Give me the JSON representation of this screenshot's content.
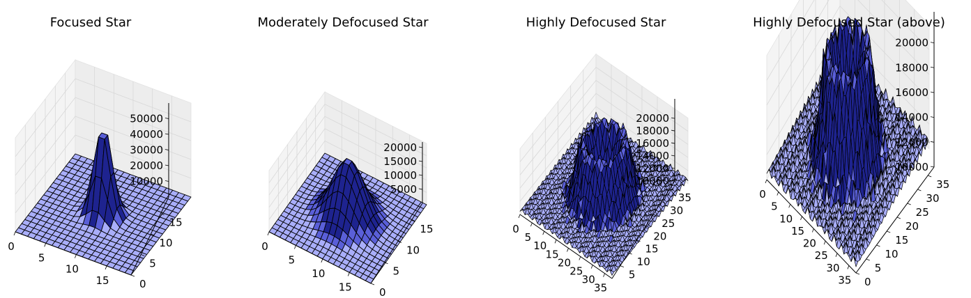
{
  "colors": {
    "surface": "#a9aefa",
    "surface_dark": "#5a5fd8",
    "surface_deep": "#1e238f",
    "edge": "#000000",
    "pane": "#ededed",
    "pane_side": "#f4f4f4",
    "grid": "#e2e2e2"
  },
  "chart_data": [
    {
      "type": "surface3d",
      "title": "Focused Star",
      "shape": "gaussian",
      "view": "side",
      "x_ticks": [
        "0",
        "5",
        "10",
        "15"
      ],
      "y_ticks": [
        "0",
        "5",
        "10",
        "15"
      ],
      "z_ticks": [
        "10000",
        "20000",
        "30000",
        "40000",
        "50000"
      ],
      "xlim": [
        0,
        19
      ],
      "ylim": [
        0,
        19
      ],
      "zlim": [
        0,
        60000
      ],
      "grid_n": 20,
      "peak": 58000,
      "base": 0,
      "sigma": 1.3
    },
    {
      "type": "surface3d",
      "title": "Moderately Defocused Star",
      "shape": "gaussian",
      "view": "side",
      "x_ticks": [
        "0",
        "5",
        "10",
        "15"
      ],
      "y_ticks": [
        "0",
        "5",
        "10",
        "15"
      ],
      "z_ticks": [
        "5000",
        "10000",
        "15000",
        "20000"
      ],
      "xlim": [
        0,
        19
      ],
      "ylim": [
        0,
        19
      ],
      "zlim": [
        0,
        22000
      ],
      "grid_n": 20,
      "peak": 21000,
      "base": 0,
      "sigma": 2.6
    },
    {
      "type": "surface3d",
      "title": "Highly Defocused Star",
      "shape": "donut",
      "view": "side",
      "x_ticks": [
        "0",
        "5",
        "10",
        "15",
        "20",
        "25",
        "30",
        "35"
      ],
      "y_ticks": [
        "5",
        "10",
        "15",
        "20",
        "25",
        "30",
        "35"
      ],
      "z_ticks": [
        "10000",
        "12000",
        "14000",
        "16000",
        "18000",
        "20000"
      ],
      "xlim": [
        0,
        38
      ],
      "ylim": [
        0,
        38
      ],
      "zlim": [
        10000,
        20500
      ],
      "grid_n": 38,
      "peak": 19500,
      "base": 10500,
      "sigma": 4.5
    },
    {
      "type": "surface3d",
      "title": "Highly Defocused Star (above)",
      "shape": "donut",
      "view": "above",
      "x_ticks": [
        "0",
        "5",
        "10",
        "15",
        "20",
        "25",
        "30",
        "35"
      ],
      "y_ticks": [
        "0",
        "5",
        "10",
        "15",
        "20",
        "25",
        "30",
        "35"
      ],
      "z_ticks": [
        "10000",
        "12000",
        "14000",
        "16000",
        "18000",
        "20000"
      ],
      "xlim": [
        0,
        38
      ],
      "ylim": [
        0,
        38
      ],
      "zlim": [
        10000,
        20000
      ],
      "grid_n": 38,
      "peak": 19500,
      "base": 10500,
      "sigma": 4.5
    }
  ]
}
